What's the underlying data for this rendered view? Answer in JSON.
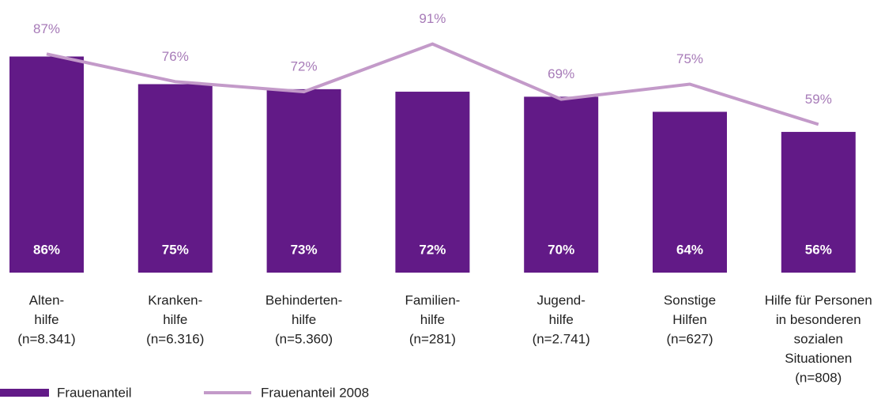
{
  "chart_data": {
    "type": "bar",
    "categories": [
      [
        "Alten-",
        "hilfe",
        "(n=8.341)"
      ],
      [
        "Kranken-",
        "hilfe",
        "(n=6.316)"
      ],
      [
        "Behinderten-",
        "hilfe",
        "(n=5.360)"
      ],
      [
        "Familien-",
        "hilfe",
        "(n=281)"
      ],
      [
        "Jugend-",
        "hilfe",
        "(n=2.741)"
      ],
      [
        "Sonstige",
        "Hilfen",
        "(n=627)"
      ],
      [
        "Hilfe für Personen",
        "in besonderen",
        "sozialen",
        "Situationen",
        "(n=808)"
      ]
    ],
    "series": [
      {
        "name": "Frauenanteil",
        "type": "bar",
        "color": "#621a87",
        "values": [
          86,
          75,
          73,
          72,
          70,
          64,
          56
        ],
        "value_labels": [
          "86%",
          "75%",
          "73%",
          "72%",
          "70%",
          "64%",
          "56%"
        ]
      },
      {
        "name": "Frauenanteil 2008",
        "type": "line",
        "color": "#c39ac9",
        "values": [
          87,
          76,
          72,
          91,
          69,
          75,
          59
        ],
        "value_labels": [
          "87%",
          "76%",
          "72%",
          "91%",
          "69%",
          "75%",
          "59%"
        ]
      }
    ]
  }
}
